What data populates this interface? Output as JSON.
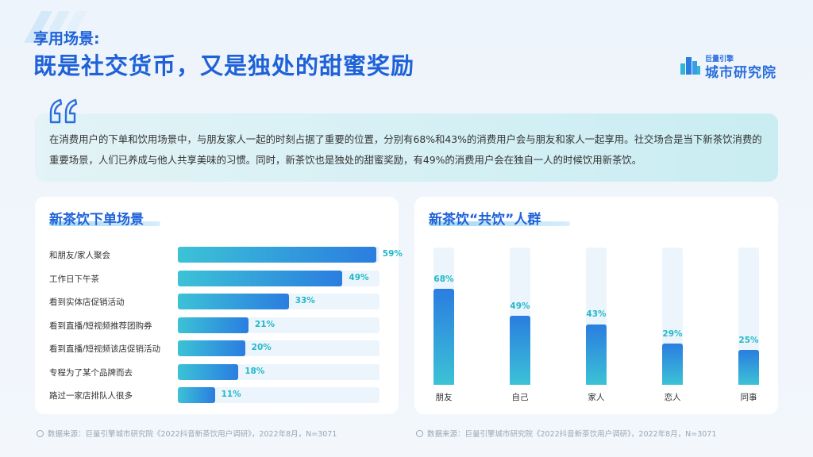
{
  "header": {
    "subtitle": "享用场景:",
    "title": "既是社交货币，又是独处的甜蜜奖励"
  },
  "logo": {
    "small_text": "巨量引擎",
    "big_text": "城市研究院"
  },
  "summary": {
    "text": "在消费用户的下单和饮用场景中，与朋友家人一起的时刻占据了重要的位置，分别有68%和43%的消费用户会与朋友和家人一起享用。社交场合是当下新茶饮消费的重要场景，人们已养成与他人共享美味的习惯。同时，新茶饮也是独处的甜蜜奖励，有49%的消费用户会在独自一人的时候饮用新茶饮。"
  },
  "colors": {
    "accent": "#1f62d8",
    "bar_start": "#3cc2d6",
    "bar_end": "#2a7de0",
    "value_text": "#22b8c9"
  },
  "chart_data": [
    {
      "type": "bar",
      "orientation": "horizontal",
      "title": "新茶饮下单场景",
      "categories": [
        "和朋友/家人聚会",
        "工作日下午茶",
        "看到实体店促销活动",
        "看到直播/短视频推荐团购券",
        "看到直播/短视频该店促销活动",
        "专程为了某个品牌而去",
        "路过一家店排队人很多"
      ],
      "values": [
        59,
        49,
        33,
        21,
        20,
        18,
        11
      ],
      "value_labels": [
        "59%",
        "49%",
        "33%",
        "21%",
        "20%",
        "18%",
        "11%"
      ],
      "xlim": [
        0,
        100
      ],
      "grid": false,
      "source": "数据来源：巨量引擎城市研究院《2022抖音新茶饮用户调研》，2022年8月，N=3071"
    },
    {
      "type": "bar",
      "orientation": "vertical",
      "title": "新茶饮“共饮”人群",
      "categories": [
        "朋友",
        "自己",
        "家人",
        "恋人",
        "同事"
      ],
      "values": [
        68,
        49,
        43,
        29,
        25
      ],
      "value_labels": [
        "68%",
        "49%",
        "43%",
        "29%",
        "25%"
      ],
      "ylim": [
        0,
        100
      ],
      "grid": false,
      "source": "数据来源：巨量引擎城市研究院《2022抖音新茶饮用户调研》，2022年8月，N=3071"
    }
  ]
}
